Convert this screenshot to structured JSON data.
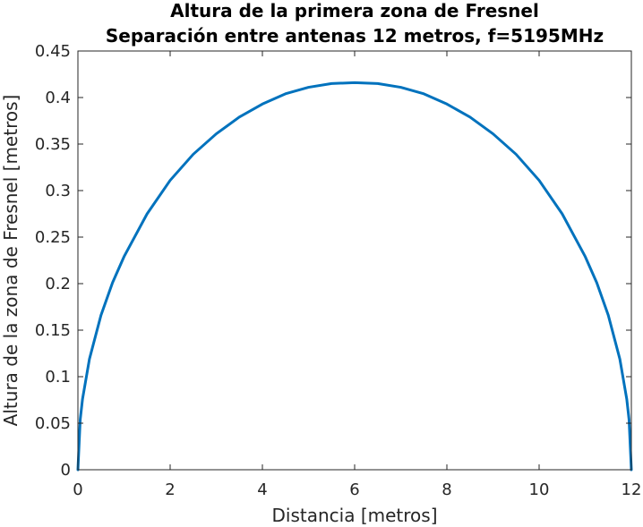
{
  "chart_data": {
    "type": "line",
    "title": "Altura de la primera zona de Fresnel",
    "subtitle": "Separación entre antenas 12 metros, f=5195MHz",
    "xlabel": "Distancia [metros]",
    "ylabel": "Altura de la zona de Fresnel [metros]",
    "xlim": [
      0,
      12
    ],
    "ylim": [
      0,
      0.45
    ],
    "xticks": [
      0,
      2,
      4,
      6,
      8,
      10,
      12
    ],
    "yticks": [
      0,
      0.05,
      0.1,
      0.15,
      0.2,
      0.25,
      0.3,
      0.35,
      0.4,
      0.45
    ],
    "xtick_labels": [
      "0",
      "2",
      "4",
      "6",
      "8",
      "10",
      "12"
    ],
    "ytick_labels": [
      "0",
      "0.05",
      "0.1",
      "0.15",
      "0.2",
      "0.25",
      "0.3",
      "0.35",
      "0.4",
      "0.45"
    ],
    "grid": false,
    "series": [
      {
        "color": "#0072bd",
        "x": [
          0,
          0.05,
          0.1,
          0.25,
          0.5,
          0.75,
          1,
          1.5,
          2,
          2.5,
          3,
          3.5,
          4,
          4.5,
          5,
          5.5,
          6,
          6.5,
          7,
          7.5,
          8,
          8.5,
          9,
          9.5,
          10,
          10.5,
          11,
          11.25,
          11.5,
          11.75,
          11.9,
          11.95,
          12
        ],
        "y": [
          0,
          0.054,
          0.076,
          0.119,
          0.166,
          0.201,
          0.229,
          0.275,
          0.311,
          0.339,
          0.361,
          0.379,
          0.393,
          0.404,
          0.411,
          0.415,
          0.416,
          0.415,
          0.411,
          0.404,
          0.393,
          0.379,
          0.361,
          0.339,
          0.311,
          0.275,
          0.229,
          0.201,
          0.166,
          0.119,
          0.076,
          0.054,
          0
        ]
      }
    ]
  }
}
